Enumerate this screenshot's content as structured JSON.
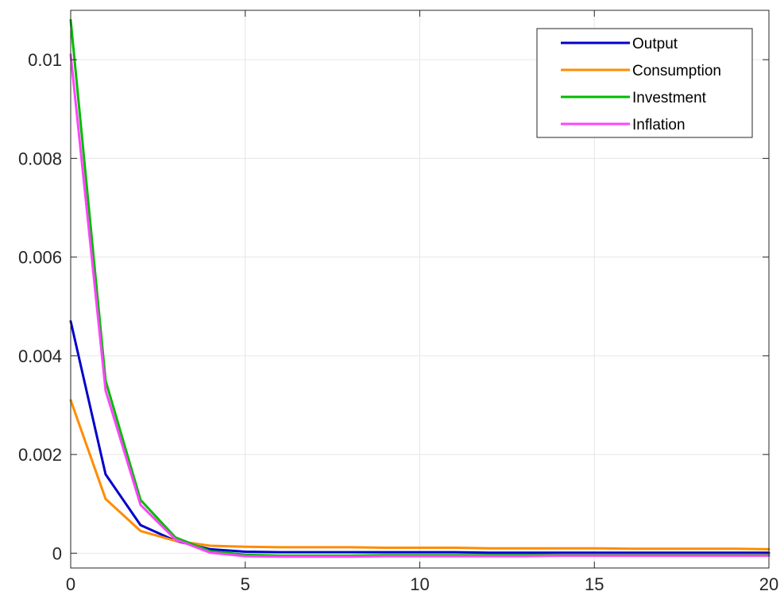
{
  "chart_data": {
    "type": "line",
    "title": "",
    "xlabel": "",
    "ylabel": "",
    "xlim": [
      0,
      20
    ],
    "ylim": [
      -0.0003,
      0.011
    ],
    "xticks": [
      0,
      5,
      10,
      15,
      20
    ],
    "yticks": [
      0,
      0.002,
      0.004,
      0.006,
      0.008,
      0.01
    ],
    "xtick_labels": [
      "0",
      "5",
      "10",
      "15",
      "20"
    ],
    "ytick_labels": [
      "0",
      "0.002",
      "0.004",
      "0.006",
      "0.008",
      "0.01"
    ],
    "grid": true,
    "legend_position": "top-right",
    "x": [
      0,
      1,
      2,
      3,
      4,
      5,
      6,
      7,
      8,
      9,
      10,
      11,
      12,
      13,
      14,
      15,
      16,
      17,
      18,
      19,
      20
    ],
    "series": [
      {
        "name": "Output",
        "color": "#0000cc",
        "values": [
          0.0047,
          0.0016,
          0.00057,
          0.00025,
          8e-05,
          3e-05,
          2e-05,
          2e-05,
          2e-05,
          2e-05,
          2e-05,
          2e-05,
          1e-05,
          1e-05,
          1e-05,
          1e-05,
          1e-05,
          1e-05,
          1e-05,
          1e-05,
          1e-05
        ]
      },
      {
        "name": "Consumption",
        "color": "#ff8c00",
        "values": [
          0.0031,
          0.0011,
          0.00045,
          0.00025,
          0.00015,
          0.00013,
          0.00012,
          0.00012,
          0.00012,
          0.00011,
          0.00011,
          0.00011,
          0.0001,
          0.0001,
          0.0001,
          0.0001,
          9e-05,
          9e-05,
          9e-05,
          9e-05,
          8e-05
        ]
      },
      {
        "name": "Investment",
        "color": "#00bb00",
        "values": [
          0.0108,
          0.0035,
          0.00108,
          0.00032,
          4e-05,
          -3e-05,
          -5e-05,
          -5e-05,
          -5e-05,
          -4e-05,
          -4e-05,
          -4e-05,
          -4e-05,
          -4e-05,
          -3e-05,
          -3e-05,
          -3e-05,
          -3e-05,
          -3e-05,
          -3e-05,
          -3e-05
        ]
      },
      {
        "name": "Inflation",
        "color": "#ff44ff",
        "values": [
          0.0101,
          0.0033,
          0.00098,
          0.00028,
          1e-05,
          -6e-05,
          -7e-05,
          -7e-05,
          -7e-05,
          -6e-05,
          -6e-05,
          -6e-05,
          -6e-05,
          -6e-05,
          -5e-05,
          -5e-05,
          -5e-05,
          -5e-05,
          -5e-05,
          -5e-05,
          -5e-05
        ]
      }
    ]
  }
}
